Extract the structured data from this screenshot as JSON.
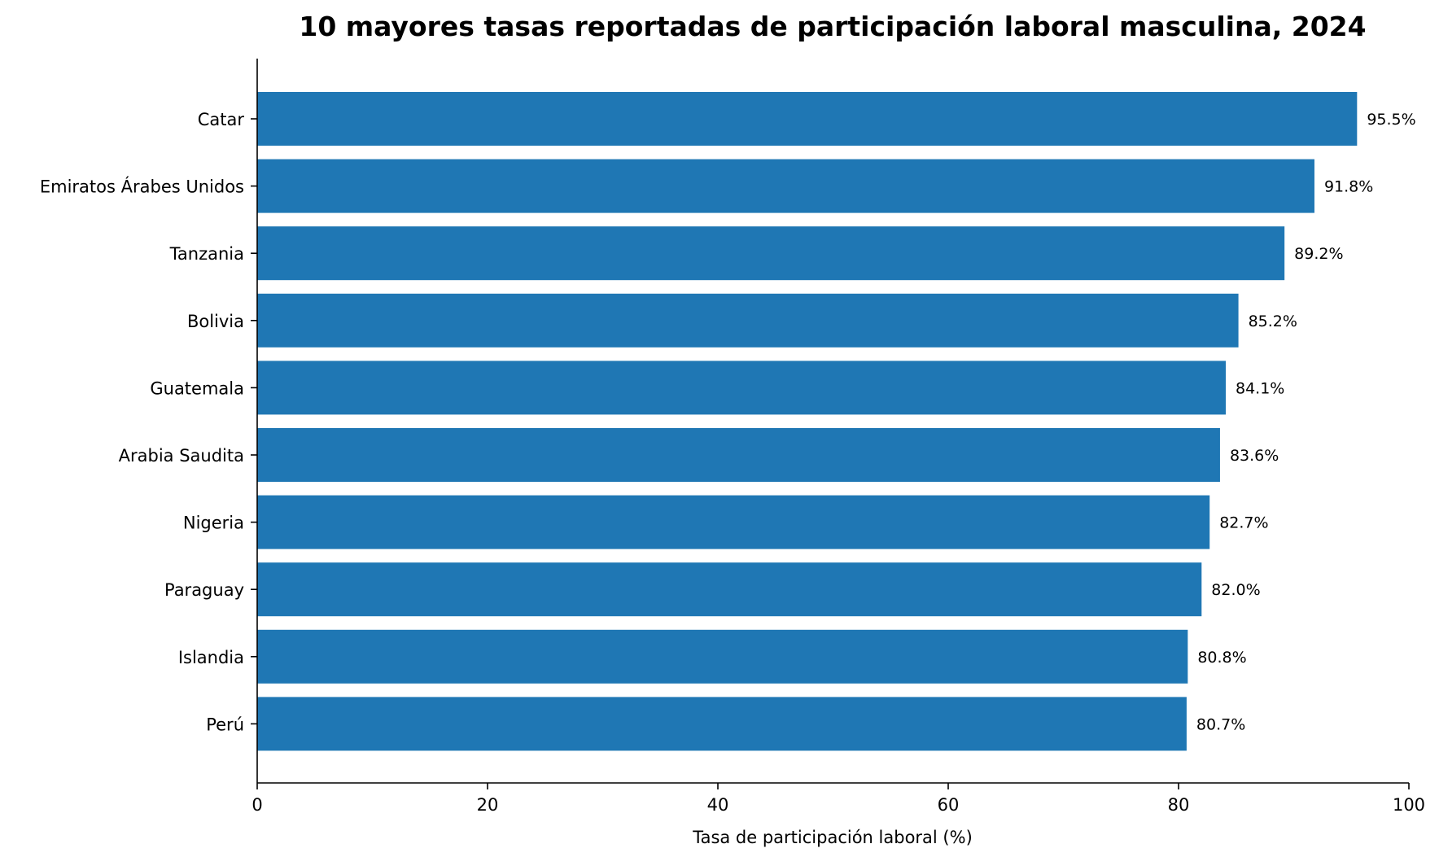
{
  "chart_data": {
    "type": "bar",
    "orientation": "horizontal",
    "title": "10 mayores tasas reportadas de participación laboral masculina, 2024",
    "xlabel": "Tasa de participación laboral (%)",
    "ylabel": "",
    "xlim": [
      0,
      100
    ],
    "xticks": [
      0,
      20,
      40,
      60,
      80,
      100
    ],
    "grid": false,
    "bar_color": "#1f77b4",
    "value_suffix": "%",
    "categories": [
      "Catar",
      "Emiratos Árabes Unidos",
      "Tanzania",
      "Bolivia",
      "Guatemala",
      "Arabia Saudita",
      "Nigeria",
      "Paraguay",
      "Islandia",
      "Perú"
    ],
    "values": [
      95.5,
      91.8,
      89.2,
      85.2,
      84.1,
      83.6,
      82.7,
      82.0,
      80.8,
      80.7
    ],
    "data_labels": [
      "95.5%",
      "91.8%",
      "89.2%",
      "85.2%",
      "84.1%",
      "83.6%",
      "82.7%",
      "82.0%",
      "80.8%",
      "80.7%"
    ]
  }
}
